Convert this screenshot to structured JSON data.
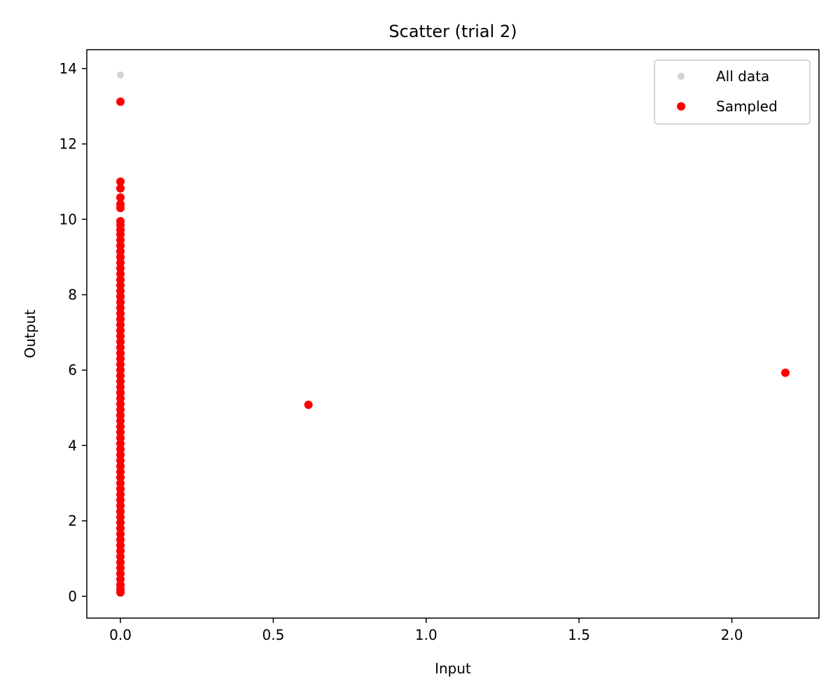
{
  "chart_data": {
    "type": "scatter",
    "title": "Scatter (trial 2)",
    "xlabel": "Input",
    "ylabel": "Output",
    "xlim": [
      -0.11,
      2.285
    ],
    "ylim": [
      -0.58,
      14.5
    ],
    "xticks": [
      0.0,
      0.5,
      1.0,
      1.5,
      2.0
    ],
    "xtick_labels": [
      "0.0",
      "0.5",
      "1.0",
      "1.5",
      "2.0"
    ],
    "yticks": [
      0,
      2,
      4,
      6,
      8,
      10,
      12,
      14
    ],
    "ytick_labels": [
      "0",
      "2",
      "4",
      "6",
      "8",
      "10",
      "12",
      "14"
    ],
    "grid": false,
    "legend_position": "top-right",
    "series": [
      {
        "name": "All data",
        "color": "#d3d3d3",
        "points": [
          [
            0.0,
            13.83
          ]
        ]
      },
      {
        "name": "Sampled",
        "color": "#ff0000",
        "points": [
          [
            0.0,
            13.12
          ],
          [
            0.0,
            11.0
          ],
          [
            0.0,
            10.82
          ],
          [
            0.0,
            10.58
          ],
          [
            0.0,
            10.4
          ],
          [
            0.0,
            10.3
          ],
          [
            0.0,
            9.95
          ],
          [
            0.0,
            9.85
          ],
          [
            0.0,
            9.72
          ],
          [
            0.0,
            9.6
          ],
          [
            0.0,
            9.45
          ],
          [
            0.0,
            9.3
          ],
          [
            0.0,
            9.15
          ],
          [
            0.0,
            9.0
          ],
          [
            0.0,
            8.85
          ],
          [
            0.0,
            8.7
          ],
          [
            0.0,
            8.55
          ],
          [
            0.0,
            8.4
          ],
          [
            0.0,
            8.25
          ],
          [
            0.0,
            8.1
          ],
          [
            0.0,
            7.95
          ],
          [
            0.0,
            7.8
          ],
          [
            0.0,
            7.65
          ],
          [
            0.0,
            7.5
          ],
          [
            0.0,
            7.35
          ],
          [
            0.0,
            7.2
          ],
          [
            0.0,
            7.05
          ],
          [
            0.0,
            6.9
          ],
          [
            0.0,
            6.75
          ],
          [
            0.0,
            6.6
          ],
          [
            0.0,
            6.45
          ],
          [
            0.0,
            6.3
          ],
          [
            0.0,
            6.15
          ],
          [
            0.0,
            6.0
          ],
          [
            0.0,
            5.85
          ],
          [
            0.0,
            5.7
          ],
          [
            0.0,
            5.55
          ],
          [
            0.0,
            5.4
          ],
          [
            0.0,
            5.25
          ],
          [
            0.0,
            5.1
          ],
          [
            0.0,
            4.95
          ],
          [
            0.0,
            4.8
          ],
          [
            0.0,
            4.65
          ],
          [
            0.0,
            4.5
          ],
          [
            0.0,
            4.35
          ],
          [
            0.0,
            4.2
          ],
          [
            0.0,
            4.05
          ],
          [
            0.0,
            3.9
          ],
          [
            0.0,
            3.75
          ],
          [
            0.0,
            3.6
          ],
          [
            0.0,
            3.45
          ],
          [
            0.0,
            3.3
          ],
          [
            0.0,
            3.15
          ],
          [
            0.0,
            3.0
          ],
          [
            0.0,
            2.85
          ],
          [
            0.0,
            2.7
          ],
          [
            0.0,
            2.55
          ],
          [
            0.0,
            2.4
          ],
          [
            0.0,
            2.25
          ],
          [
            0.0,
            2.1
          ],
          [
            0.0,
            1.95
          ],
          [
            0.0,
            1.8
          ],
          [
            0.0,
            1.65
          ],
          [
            0.0,
            1.5
          ],
          [
            0.0,
            1.35
          ],
          [
            0.0,
            1.2
          ],
          [
            0.0,
            1.05
          ],
          [
            0.0,
            0.9
          ],
          [
            0.0,
            0.75
          ],
          [
            0.0,
            0.6
          ],
          [
            0.0,
            0.45
          ],
          [
            0.0,
            0.3
          ],
          [
            0.0,
            0.18
          ],
          [
            0.0,
            0.1
          ],
          [
            0.615,
            5.08
          ],
          [
            2.175,
            5.93
          ]
        ]
      }
    ]
  }
}
